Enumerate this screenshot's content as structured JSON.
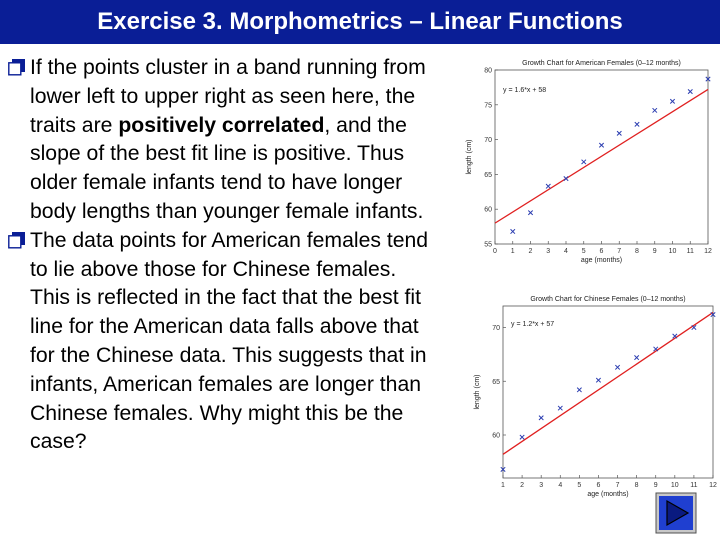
{
  "title": "Exercise 3. Morphometrics – Linear Functions",
  "bullets": [
    {
      "parts": [
        {
          "t": "If the points cluster in a band running from lower left to upper right as seen here, the traits are ",
          "b": false
        },
        {
          "t": "positively correlated",
          "b": true
        },
        {
          "t": ", and the slope of the best fit line is positive. Thus older female infants tend to have longer body lengths than younger female infants.",
          "b": false
        }
      ]
    },
    {
      "parts": [
        {
          "t": "The data points for American females tend to lie above those for Chinese females. This is reflected in the fact that the best fit line for the American data falls above that for the Chinese data.  This suggests that in infants, American females are longer than Chinese females. Why might this be the case?",
          "b": false
        }
      ]
    }
  ],
  "colors": {
    "title_bg": "#0a1e96",
    "title_text": "#ffffff",
    "bullet_box": "#0a1e96",
    "fit_line": "#e02020",
    "points": "#2a3cb0",
    "nav_button": "#1f3fd0"
  },
  "nav_icon": "play-next-icon",
  "chart_data": [
    {
      "type": "scatter",
      "title": "Growth Chart for American Females (0–12 months)",
      "xlabel": "age (months)",
      "ylabel": "length (cm)",
      "equation": "y = 1.6*x + 58",
      "xlim": [
        0,
        12
      ],
      "ylim": [
        55,
        80
      ],
      "xticks": [
        0,
        1,
        2,
        3,
        4,
        5,
        6,
        7,
        8,
        9,
        10,
        11,
        12
      ],
      "yticks": [
        55,
        60,
        65,
        70,
        75,
        80
      ],
      "ytick_labels": [
        "55",
        "60",
        "65",
        "70",
        "75",
        "80"
      ],
      "grid": false,
      "fit": {
        "slope": 1.6,
        "intercept": 58
      },
      "x": [
        1,
        2,
        3,
        4,
        5,
        6,
        7,
        8,
        9,
        10,
        11,
        12
      ],
      "y": [
        56.8,
        59.5,
        63.3,
        64.4,
        66.8,
        69.2,
        70.9,
        72.2,
        74.2,
        75.5,
        76.9,
        78.7
      ]
    },
    {
      "type": "scatter",
      "title": "Growth Chart for Chinese Females (0–12 months)",
      "xlabel": "age (months)",
      "ylabel": "length (cm)",
      "equation": "y = 1.2*x + 57",
      "xlim": [
        1,
        12
      ],
      "ylim": [
        56,
        72
      ],
      "xticks": [
        1,
        2,
        3,
        4,
        5,
        6,
        7,
        8,
        9,
        10,
        11,
        12
      ],
      "yticks": [
        60,
        65,
        70
      ],
      "ytick_labels": [
        "60",
        "65",
        "70"
      ],
      "grid": false,
      "fit": {
        "slope": 1.2,
        "intercept": 57
      },
      "x": [
        1,
        2,
        3,
        4,
        5,
        6,
        7,
        8,
        9,
        10,
        11,
        12
      ],
      "y": [
        56.8,
        59.8,
        61.6,
        62.5,
        64.2,
        65.1,
        66.3,
        67.2,
        68.0,
        69.2,
        70.0,
        71.2
      ]
    }
  ]
}
